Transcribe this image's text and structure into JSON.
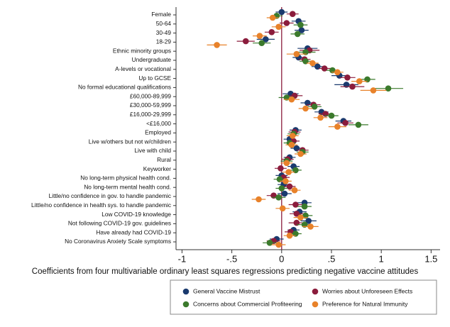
{
  "chart_data": {
    "type": "coefficient",
    "xlabel": "Coefficients from four multivariable ordinary least squares regressions predicting negative vaccine attitudes",
    "categories": [
      "Female",
      "50-64",
      "30-49",
      "18-29",
      "Ethnic minority groups",
      "Undergraduate",
      "A-levels or vocational",
      "Up to GCSE",
      "No formal educational qualifications",
      "£60,000-89,999",
      "£30,000-59,999",
      "£16,000-29,999",
      "<£16,000",
      "Employed",
      "Live w/others but not w/children",
      "Live with child",
      "Rural",
      "Keyworker",
      "No long-term physical health cond.",
      "No long-term mental health cond.",
      "Little/no confidence in gov. to handle pandemic",
      "Little/no confidence in health sys. to handle pandemic",
      "Low COVID-19 knowledge",
      "Not following COVID-19 gov. guidelines",
      "Have already had COVID-19",
      "No Coronavirus Anxiety Scale symptoms"
    ],
    "series": [
      {
        "name": "General Vaccine Mistrust",
        "color": "#1a3a6e",
        "values": [
          0.0,
          0.17,
          0.2,
          -0.16,
          0.26,
          0.17,
          0.36,
          0.58,
          0.65,
          0.09,
          0.26,
          0.4,
          0.62,
          0.14,
          0.08,
          0.15,
          0.08,
          0.12,
          0.0,
          0.02,
          0.03,
          0.23,
          0.18,
          0.27,
          0.12,
          -0.05
        ],
        "errors": [
          0.06,
          0.07,
          0.07,
          0.09,
          0.1,
          0.06,
          0.06,
          0.08,
          0.12,
          0.08,
          0.07,
          0.07,
          0.08,
          0.06,
          0.06,
          0.06,
          0.06,
          0.06,
          0.06,
          0.06,
          0.07,
          0.07,
          0.07,
          0.08,
          0.06,
          0.07
        ]
      },
      {
        "name": "Worries about Unforeseen Effects",
        "color": "#8b1c3c",
        "values": [
          0.11,
          0.05,
          -0.1,
          -0.36,
          0.28,
          0.23,
          0.43,
          0.66,
          0.71,
          0.13,
          0.32,
          0.44,
          0.64,
          0.13,
          0.12,
          0.21,
          0.06,
          -0.01,
          0.02,
          0.08,
          -0.08,
          0.14,
          0.15,
          0.15,
          0.09,
          -0.08
        ],
        "errors": [
          0.06,
          0.07,
          0.07,
          0.09,
          0.1,
          0.06,
          0.06,
          0.08,
          0.12,
          0.08,
          0.07,
          0.07,
          0.08,
          0.06,
          0.06,
          0.06,
          0.06,
          0.06,
          0.06,
          0.06,
          0.07,
          0.07,
          0.07,
          0.08,
          0.06,
          0.07
        ]
      },
      {
        "name": "Concerns about Commercial Profiteering",
        "color": "#3b7a2c",
        "values": [
          -0.05,
          0.19,
          0.16,
          -0.2,
          0.24,
          0.24,
          0.51,
          0.86,
          1.07,
          0.05,
          0.33,
          0.5,
          0.77,
          0.12,
          0.08,
          0.21,
          0.05,
          0.14,
          -0.02,
          0.0,
          -0.03,
          0.23,
          0.24,
          0.23,
          0.14,
          -0.12
        ],
        "errors": [
          0.06,
          0.07,
          0.07,
          0.09,
          0.1,
          0.06,
          0.06,
          0.08,
          0.15,
          0.08,
          0.07,
          0.07,
          0.1,
          0.06,
          0.06,
          0.06,
          0.06,
          0.06,
          0.06,
          0.06,
          0.07,
          0.07,
          0.07,
          0.08,
          0.06,
          0.07
        ]
      },
      {
        "name": "Preference for Natural Immunity",
        "color": "#e8822a",
        "values": [
          -0.09,
          -0.03,
          -0.22,
          -0.65,
          0.15,
          0.31,
          0.56,
          0.78,
          0.92,
          0.1,
          0.24,
          0.39,
          0.56,
          0.11,
          0.1,
          0.19,
          0.05,
          0.07,
          0.04,
          0.13,
          -0.23,
          0.01,
          0.19,
          0.29,
          0.08,
          -0.03
        ],
        "errors": [
          0.06,
          0.07,
          0.07,
          0.1,
          0.1,
          0.06,
          0.06,
          0.08,
          0.13,
          0.08,
          0.07,
          0.07,
          0.09,
          0.06,
          0.06,
          0.06,
          0.06,
          0.06,
          0.06,
          0.06,
          0.07,
          0.07,
          0.07,
          0.08,
          0.06,
          0.07
        ]
      }
    ],
    "xlim": [
      -1.06,
      1.59
    ],
    "xticks": [
      -1,
      {
        "value": -0.5,
        "label": "-.5"
      },
      0,
      {
        "value": 0.5,
        "label": ".5"
      },
      1,
      1.5
    ],
    "xline": 0,
    "xline_color": "#8b1c3c",
    "legend": "bottom"
  }
}
